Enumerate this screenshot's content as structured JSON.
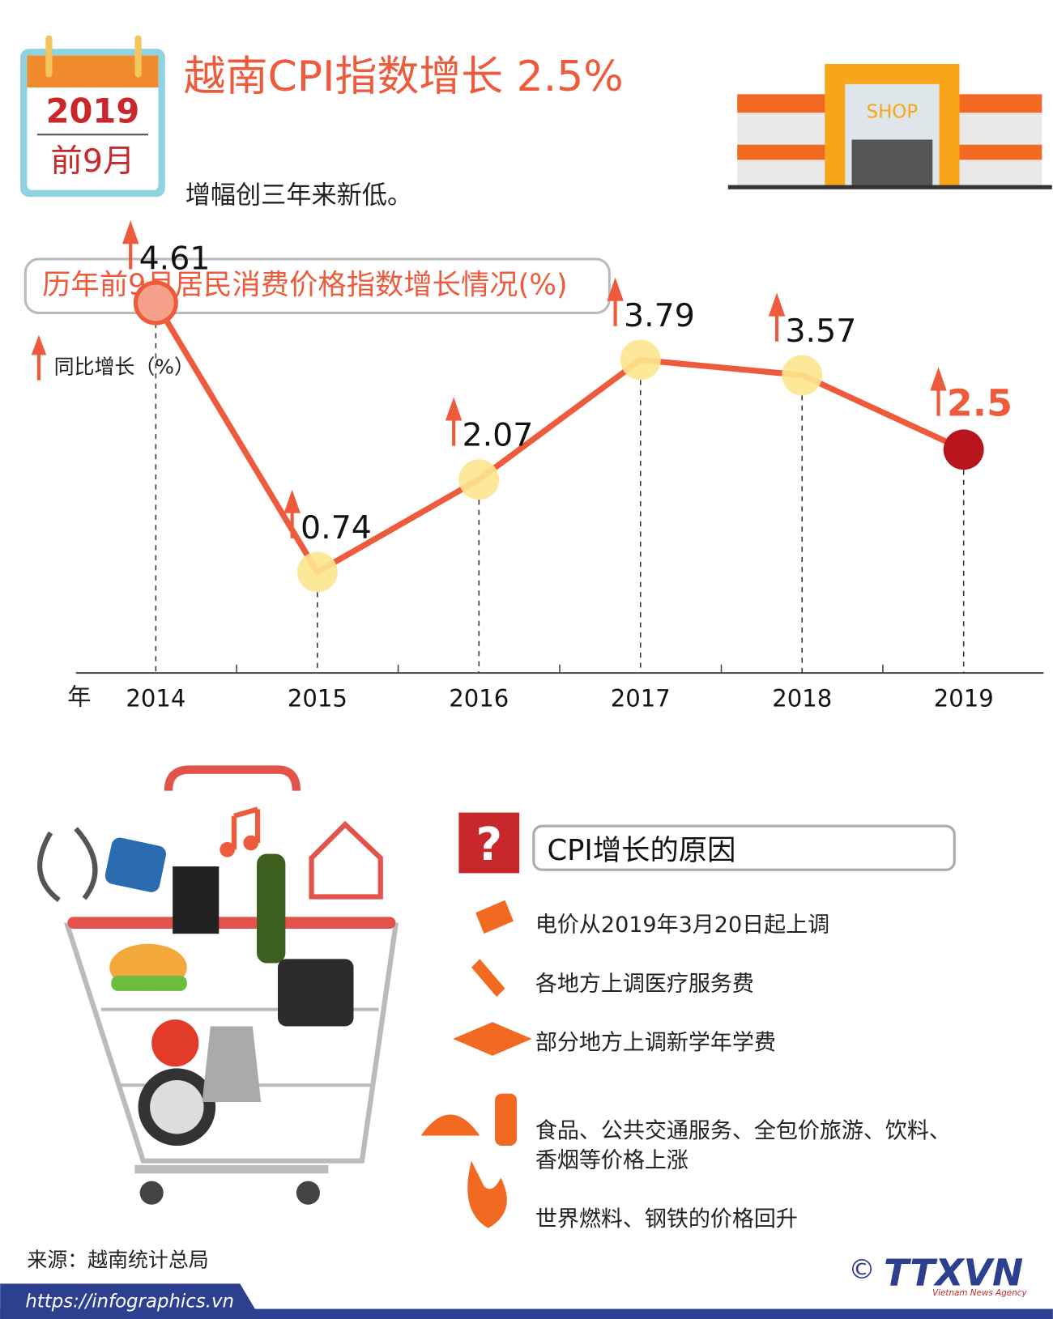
{
  "header": {
    "calendar_year": "2019",
    "calendar_month": "前9月",
    "title": "越南CPI指数增长 2.5%",
    "subtitle": "增幅创三年来新低。",
    "shop_sign": "SHOP"
  },
  "chart_data": {
    "type": "line",
    "title": "历年前9月居民消费价格指数增长情况(%)",
    "y_label": "同比增长（%）",
    "x_label": "年",
    "categories": [
      "2014",
      "2015",
      "2016",
      "2017",
      "2018",
      "2019"
    ],
    "values": [
      4.61,
      0.74,
      2.07,
      3.79,
      3.57,
      2.5
    ],
    "color": "#ee5a3c"
  },
  "reasons": {
    "title": "CPI增长的原因",
    "items": [
      [
        "电价从2019年3月20日起上调"
      ],
      [
        "各地方上调医疗服务费"
      ],
      [
        "部分地方上调新学年学费"
      ],
      [
        "食品、公共交通服务、全包价旅游、饮料、",
        "香烟等价格上涨"
      ],
      [
        "世界燃料、钢铁的价格回升"
      ]
    ]
  },
  "footer": {
    "source": "来源：越南统计总局",
    "url": "https://infographics.vn",
    "copyright": "©",
    "logo": "TTXVN",
    "logo_sub": "Vietnam News Agency"
  }
}
